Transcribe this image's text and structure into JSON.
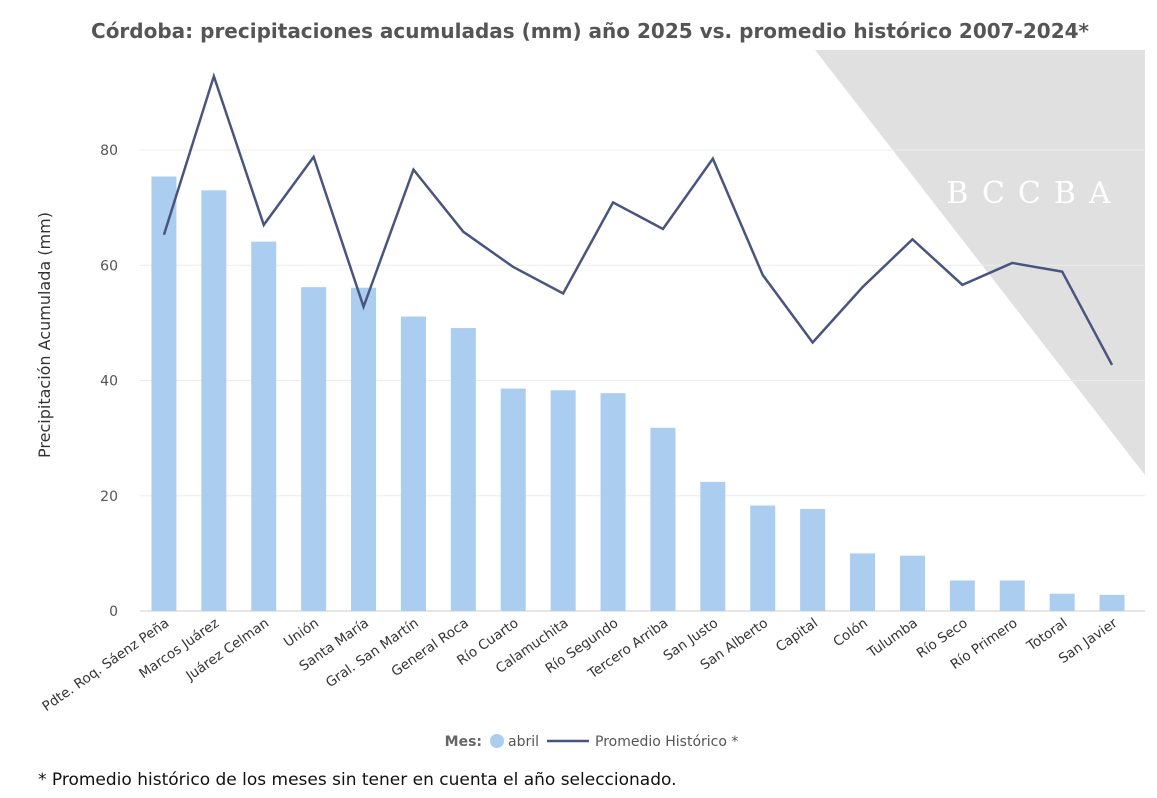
{
  "chart_data": {
    "type": "bar_line",
    "title": "Córdoba: precipitaciones acumuladas (mm) año 2025 vs. promedio histórico 2007-2024*",
    "y_label": "Precipitación Acumulada (mm)",
    "legend_title": "Mes:",
    "footnote": "* Promedio histórico de los meses sin tener en cuenta el año seleccionado.",
    "watermark": "BCCBA",
    "categories": [
      "Pdte. Roq. Sáenz Peña",
      "Marcos Juárez",
      "Juárez Celman",
      "Unión",
      "Santa María",
      "Gral. San Martín",
      "General Roca",
      "Río Cuarto",
      "Calamuchita",
      "Río Segundo",
      "Tercero Arriba",
      "San Justo",
      "San Alberto",
      "Capital",
      "Colón",
      "Tulumba",
      "Río Seco",
      "Río Primero",
      "Totoral",
      "San Javier"
    ],
    "series": [
      {
        "name": "abril",
        "type": "bar",
        "color": "#abcdf0",
        "values": [
          75.4,
          73,
          64.1,
          56.2,
          56.1,
          51.1,
          49.1,
          38.6,
          38.3,
          37.8,
          31.8,
          22.4,
          18.3,
          17.7,
          10,
          9.6,
          5.3,
          5.3,
          3,
          2.8
        ]
      },
      {
        "name": "Promedio Histórico *",
        "type": "line",
        "color": "#48557f",
        "values": [
          65.3,
          92.8,
          67,
          78.8,
          52.8,
          76.6,
          65.8,
          59.7,
          55.1,
          70.9,
          66.3,
          78.5,
          58.3,
          46.6,
          56.2,
          64.5,
          56.6,
          60.4,
          58.9,
          42.7
        ]
      }
    ],
    "ylim": [
      0,
      100
    ],
    "yticks": [
      0,
      20,
      40,
      60,
      80
    ],
    "grid": true
  }
}
